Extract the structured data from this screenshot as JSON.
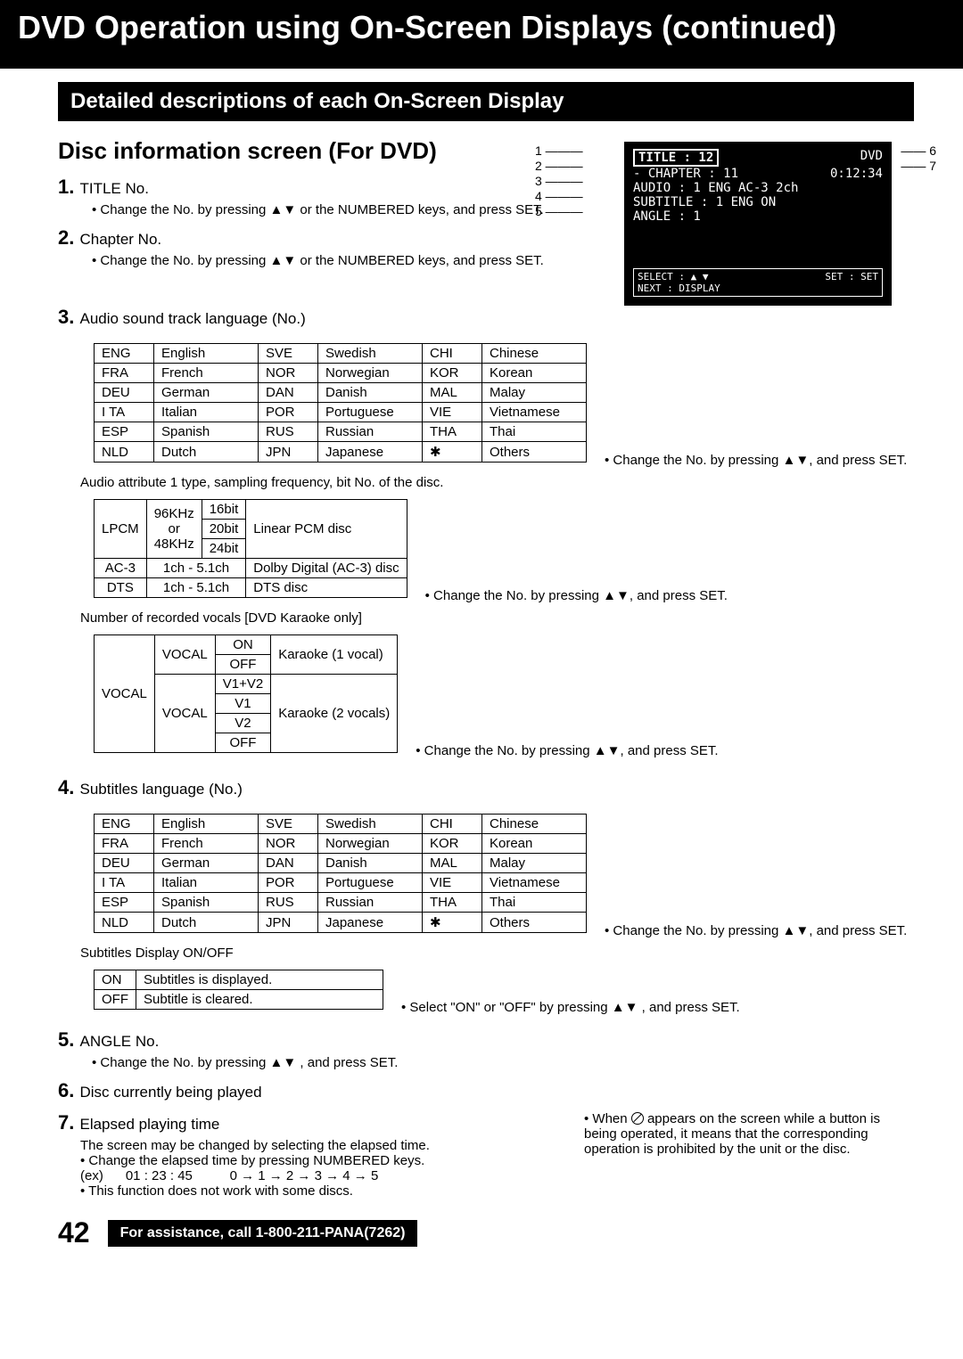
{
  "page_title": "DVD Operation using On-Screen Displays (continued)",
  "section_bar": "Detailed descriptions of each On-Screen Display",
  "subheading": "Disc information screen (For DVD)",
  "items": {
    "i1": {
      "title": "TITLE No.",
      "sub": "Change the No. by pressing ▲▼ or the NUMBERED keys, and press SET."
    },
    "i2": {
      "title": "Chapter No.",
      "sub": "Change the No. by pressing ▲▼ or the NUMBERED keys, and press SET."
    },
    "i3": {
      "title": "Audio sound track language (No.)"
    },
    "i4": {
      "title": "Subtitles language (No.)"
    },
    "i5": {
      "title": "ANGLE No.",
      "sub": "Change the No. by pressing ▲▼ , and press SET."
    },
    "i6": {
      "title": "Disc currently being played"
    },
    "i7": {
      "title": "Elapsed playing time",
      "line1": "The screen may be changed by selecting the elapsed time.",
      "bullet1": "Change the elapsed time by pressing NUMBERED keys.",
      "ex": "(ex)      01 : 23 : 45          0 → 1 → 2 → 3 → 4 → 5",
      "bullet2": "This function does not work with some discs."
    }
  },
  "osd": {
    "title": "TITLE : 12",
    "dvd": "DVD",
    "chapter": "- CHAPTER : 11",
    "time": "0:12:34",
    "audio": "AUDIO : 1  ENG  AC-3  2ch",
    "subtitle": "SUBTITLE : 1  ENG  ON",
    "angle": "ANGLE : 1",
    "footer1": "SELECT : ▲ ▼",
    "footer2": "SET : SET",
    "footer3": "NEXT    : DISPLAY"
  },
  "callouts_left": [
    "1",
    "2",
    "3",
    "4",
    "5"
  ],
  "callouts_right": [
    "6",
    "7"
  ],
  "langs": {
    "rows": [
      [
        "ENG",
        "English",
        "SVE",
        "Swedish",
        "CHI",
        "Chinese"
      ],
      [
        "FRA",
        "French",
        "NOR",
        "Norwegian",
        "KOR",
        "Korean"
      ],
      [
        "DEU",
        "German",
        "DAN",
        "Danish",
        "MAL",
        "Malay"
      ],
      [
        "I TA",
        "Italian",
        "POR",
        "Portuguese",
        "VIE",
        "Vietnamese"
      ],
      [
        "ESP",
        "Spanish",
        "RUS",
        "Russian",
        "THA",
        "Thai"
      ],
      [
        "NLD",
        "Dutch",
        "JPN",
        "Japanese",
        "✱",
        "Others"
      ]
    ]
  },
  "change_note": "Change the No. by pressing ▲▼, and press SET.",
  "select_note": "Select \"ON\" or \"OFF\" by pressing ▲▼ , and press SET.",
  "audio_attr_label": "Audio attribute 1 type, sampling frequency, bit No. of the disc.",
  "audio_attr": {
    "lpcm": "LPCM",
    "freq": "96KHz\nor\n48KHz",
    "b16": "16bit",
    "b20": "20bit",
    "b24": "24bit",
    "lpcm_desc": "Linear PCM disc",
    "ac3": "AC-3",
    "ac3_ch": "1ch - 5.1ch",
    "ac3_desc": "Dolby Digital (AC-3) disc",
    "dts": "DTS",
    "dts_ch": "1ch - 5.1ch",
    "dts_desc": "DTS disc"
  },
  "vocal_label": "Number of recorded vocals [DVD Karaoke only]",
  "vocal": {
    "head": "VOCAL",
    "v1_label": "VOCAL",
    "on": "ON",
    "off": "OFF",
    "k1": "Karaoke (1 vocal)",
    "v1v2": "V1+V2",
    "v1": "V1",
    "v2": "V2",
    "k2": "Karaoke (2 vocals)"
  },
  "sub_disp_label": "Subtitles Display ON/OFF",
  "sub_disp": {
    "on": "ON",
    "on_desc": "Subtitles is displayed.",
    "off": "OFF",
    "off_desc": "Subtitle is cleared."
  },
  "warn": "When ⊘ appears on the screen while a button is being operated, it means that the corresponding operation is prohibited by the unit or the disc.",
  "page_num": "42",
  "assist": "For assistance, call 1-800-211-PANA(7262)"
}
